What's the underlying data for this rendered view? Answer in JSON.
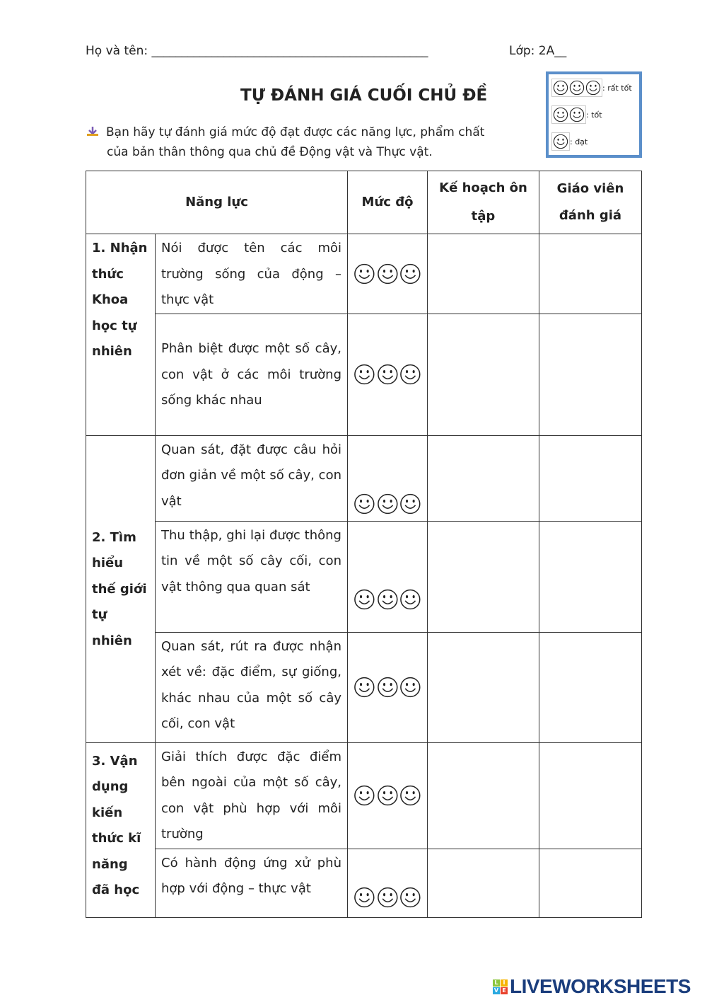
{
  "header": {
    "name_label": "Họ và tên: ______________________________________________",
    "class_label": "Lớp: 2A__"
  },
  "title": "TỰ ĐÁNH GIÁ CUỐI CHỦ ĐỀ",
  "intro": {
    "line1": "Bạn hãy tự đánh giá mức độ đạt được các năng lực, phẩm chất",
    "line2": "của bản thân thông qua chủ đề Động vật và Thực vật."
  },
  "legend": [
    {
      "faces": 3,
      "label": ": rất tốt"
    },
    {
      "faces": 2,
      "label": ": tốt"
    },
    {
      "faces": 1,
      "label": ": đạt"
    }
  ],
  "table": {
    "headers": [
      "Năng lực",
      "Mức độ",
      "Kế hoạch ôn tập",
      "Giáo viên đánh giá"
    ],
    "groups": [
      {
        "category": "1. Nhận thức Khoa học tự nhiên",
        "items": [
          "Nói được tên các môi trường sống của động – thực vật",
          "Phân biệt được một số cây, con vật ở các môi trường sống khác nhau"
        ]
      },
      {
        "category": "2. Tìm hiểu thế giới tự nhiên",
        "items": [
          "Quan sát, đặt được câu hỏi đơn giản về một số cây, con vật",
          "Thu thập, ghi lại được thông tin về một số cây cối, con vật thông qua quan sát",
          "Quan sát, rút ra được nhận xét về: đặc điểm, sự giống, khác nhau của một số cây cối, con vật"
        ]
      },
      {
        "category": "3. Vận dụng kiến thức kĩ năng đã học",
        "items": [
          "Giải thích được đặc điểm bên ngoài của một số cây, con vật phù hợp với môi trường",
          "Có hành động ứng xử phù hợp với động – thực vật"
        ]
      }
    ]
  },
  "watermark": {
    "text": "LIVEWORKSHEETS",
    "logo": "LIVE"
  },
  "colors": {
    "legend_border": "#5b8fca",
    "brand": "#1a3d7c"
  }
}
